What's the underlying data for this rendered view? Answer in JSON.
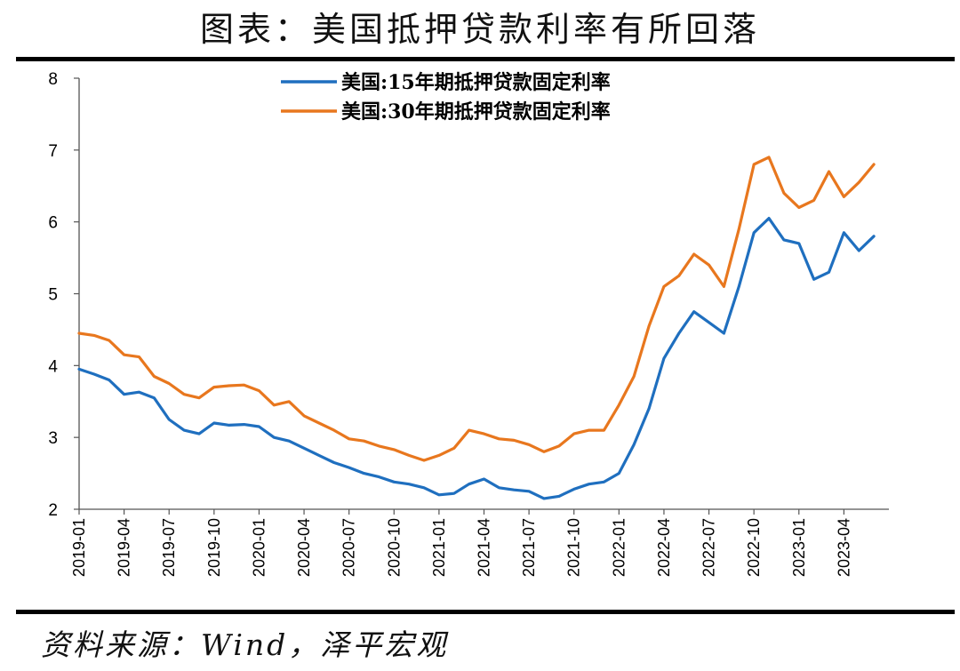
{
  "header": {
    "title": "图表：美国抵押贷款利率有所回落"
  },
  "footer": {
    "source": "资料来源：Wind，泽平宏观"
  },
  "chart_data": {
    "type": "line",
    "title": "图表：美国抵押贷款利率有所回落",
    "xlabel": "",
    "ylabel": "",
    "ylim": [
      2,
      8
    ],
    "yticks": [
      2,
      3,
      4,
      5,
      6,
      7,
      8
    ],
    "xlim": [
      "2019-01",
      "2023-07"
    ],
    "x_tick_labels": [
      "2019-01",
      "2019-04",
      "2019-07",
      "2019-10",
      "2020-01",
      "2020-04",
      "2020-07",
      "2020-10",
      "2021-01",
      "2021-04",
      "2021-07",
      "2021-10",
      "2022-01",
      "2022-04",
      "2022-07",
      "2022-10",
      "2023-01",
      "2023-04"
    ],
    "legend_position": "top-center",
    "grid": false,
    "x": [
      "2019-01",
      "2019-02",
      "2019-03",
      "2019-04",
      "2019-05",
      "2019-06",
      "2019-07",
      "2019-08",
      "2019-09",
      "2019-10",
      "2019-11",
      "2019-12",
      "2020-01",
      "2020-02",
      "2020-03",
      "2020-04",
      "2020-05",
      "2020-06",
      "2020-07",
      "2020-08",
      "2020-09",
      "2020-10",
      "2020-11",
      "2020-12",
      "2021-01",
      "2021-02",
      "2021-03",
      "2021-04",
      "2021-05",
      "2021-06",
      "2021-07",
      "2021-08",
      "2021-09",
      "2021-10",
      "2021-11",
      "2021-12",
      "2022-01",
      "2022-02",
      "2022-03",
      "2022-04",
      "2022-05",
      "2022-06",
      "2022-07",
      "2022-08",
      "2022-09",
      "2022-10",
      "2022-11",
      "2022-12",
      "2023-01",
      "2023-02",
      "2023-03",
      "2023-04",
      "2023-05",
      "2023-06"
    ],
    "series": [
      {
        "name": "美国:15年期抵押贷款固定利率",
        "color": "#1f6fbf",
        "values": [
          3.95,
          3.88,
          3.8,
          3.6,
          3.63,
          3.55,
          3.25,
          3.1,
          3.05,
          3.2,
          3.17,
          3.18,
          3.15,
          3.0,
          2.95,
          2.85,
          2.75,
          2.65,
          2.58,
          2.5,
          2.45,
          2.38,
          2.35,
          2.3,
          2.2,
          2.22,
          2.35,
          2.42,
          2.3,
          2.27,
          2.25,
          2.15,
          2.18,
          2.28,
          2.35,
          2.38,
          2.5,
          2.9,
          3.4,
          4.1,
          4.45,
          4.75,
          4.6,
          4.45,
          5.1,
          5.85,
          6.05,
          5.75,
          5.7,
          5.2,
          5.3,
          5.85,
          5.6,
          5.8
        ]
      },
      {
        "name": "美国:30年期抵押贷款固定利率",
        "color": "#e8771e",
        "values": [
          4.45,
          4.42,
          4.35,
          4.15,
          4.12,
          3.85,
          3.75,
          3.6,
          3.55,
          3.7,
          3.72,
          3.73,
          3.65,
          3.45,
          3.5,
          3.3,
          3.2,
          3.1,
          2.98,
          2.95,
          2.88,
          2.83,
          2.75,
          2.68,
          2.75,
          2.85,
          3.1,
          3.05,
          2.98,
          2.96,
          2.9,
          2.8,
          2.88,
          3.05,
          3.1,
          3.1,
          3.45,
          3.85,
          4.55,
          5.1,
          5.25,
          5.55,
          5.4,
          5.1,
          5.9,
          6.8,
          6.9,
          6.4,
          6.2,
          6.3,
          6.7,
          6.35,
          6.55,
          6.8
        ]
      }
    ]
  }
}
